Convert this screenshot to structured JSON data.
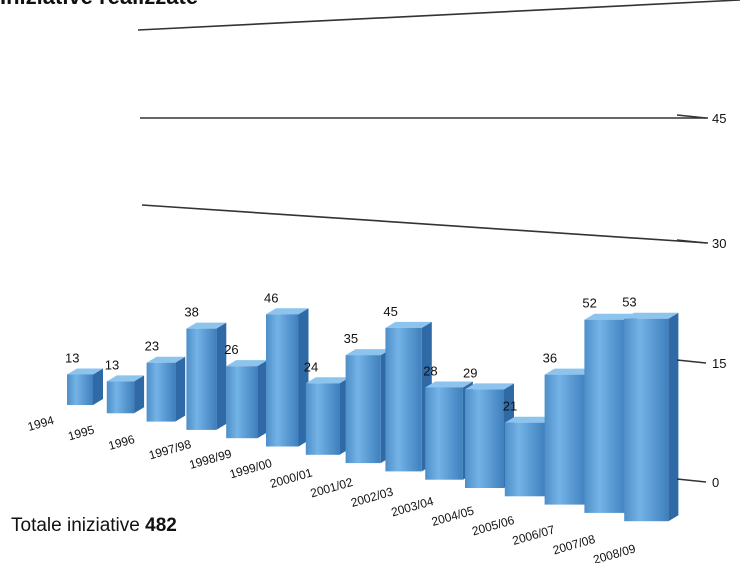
{
  "chart_data": {
    "type": "bar",
    "title": "Iniziative realizzate",
    "categories": [
      "1994",
      "1995",
      "1996",
      "1997/98",
      "1998/99",
      "1999/00",
      "2000/01",
      "2001/02",
      "2002/03",
      "2003/04",
      "2004/05",
      "2005/06",
      "2006/07",
      "2007/08",
      "2008/09"
    ],
    "values": [
      13,
      13,
      23,
      38,
      26,
      46,
      24,
      35,
      45,
      28,
      29,
      21,
      36,
      52,
      53
    ],
    "yticks": [
      0,
      15,
      30,
      45
    ],
    "ylim": [
      0,
      60
    ],
    "xlabel": "",
    "ylabel": "",
    "grid": true,
    "bar_color": "#5b9fd6"
  },
  "footer": {
    "label": "Totale iniziative",
    "value": "482"
  }
}
